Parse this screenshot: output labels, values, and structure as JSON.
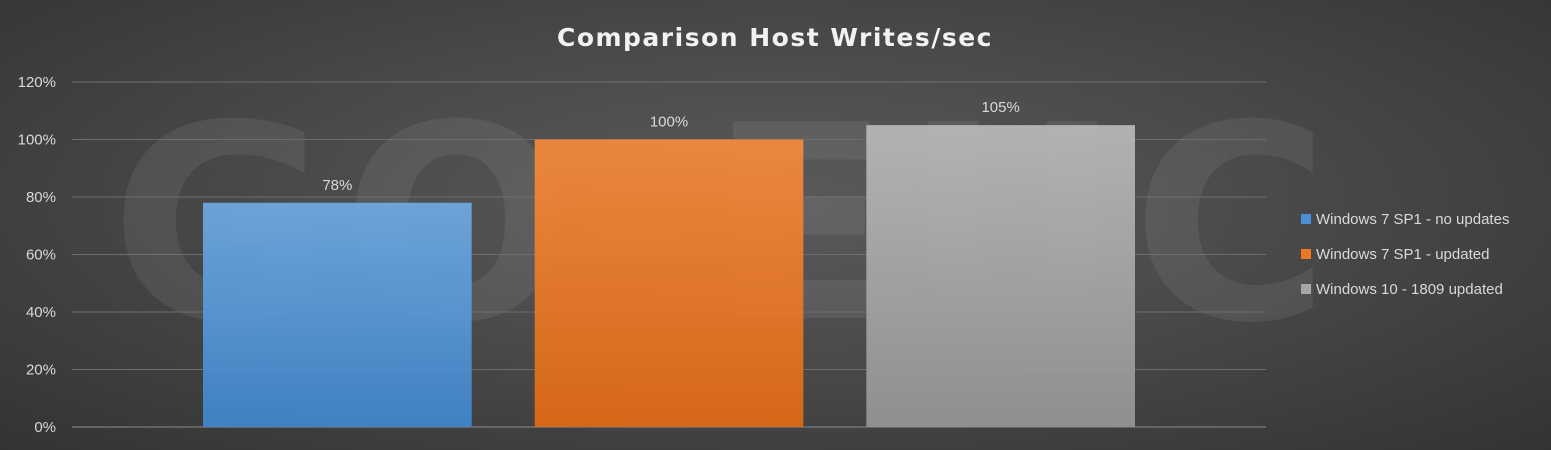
{
  "watermark": "GO-EUC",
  "chart_data": {
    "type": "bar",
    "title": "Comparison Host Writes/sec",
    "xlabel": "",
    "ylabel": "",
    "categories": [
      ""
    ],
    "ylim": [
      0,
      120
    ],
    "y_ticks": [
      0,
      20,
      40,
      60,
      80,
      100,
      120
    ],
    "y_tick_labels": [
      "0%",
      "20%",
      "40%",
      "60%",
      "80%",
      "100%",
      "120%"
    ],
    "grid": true,
    "legend_position": "right",
    "series": [
      {
        "name": "Windows 7 SP1 - no updates",
        "values": [
          78
        ],
        "label": "78%",
        "color": "#4a90d9"
      },
      {
        "name": "Windows 7 SP1 - updated",
        "values": [
          100
        ],
        "label": "100%",
        "color": "#ee7623"
      },
      {
        "name": "Windows 10 - 1809 updated",
        "values": [
          105
        ],
        "label": "105%",
        "color": "#a6a6a6"
      }
    ]
  }
}
